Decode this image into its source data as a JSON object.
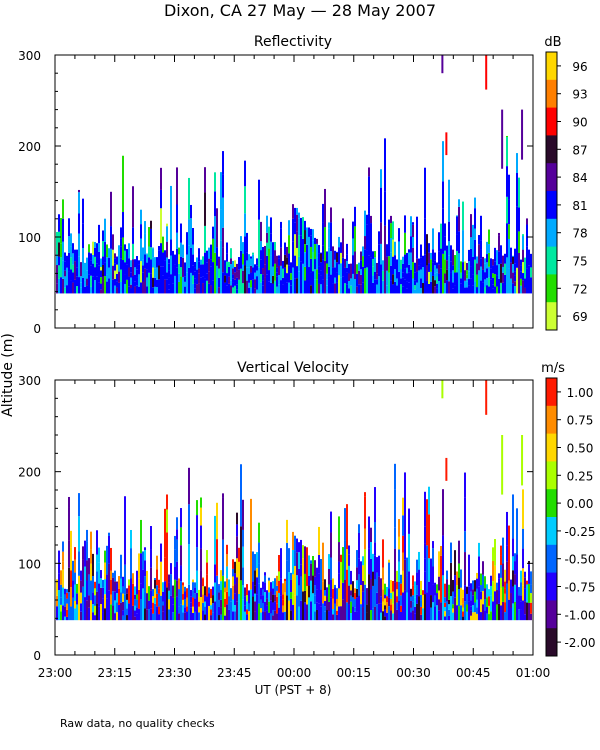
{
  "figure": {
    "title": "Dixon, CA 27 May — 28 May 2007",
    "ylabel": "Altitude (m)",
    "xlabel": "UT  (PST + 8)",
    "footnote": "Raw data, no quality checks"
  },
  "chart_data": [
    {
      "type": "heatmap",
      "title": "Reflectivity",
      "colorbar_unit": "dB",
      "colorbar_labels": [
        "96",
        "93",
        "90",
        "87",
        "84",
        "81",
        "78",
        "75",
        "72",
        "69"
      ],
      "colorbar_colors": [
        "#ffd700",
        "#ff7f00",
        "#ff0000",
        "#2a0a2a",
        "#55009a",
        "#0000ff",
        "#00aaff",
        "#00e8a0",
        "#22dd00",
        "#ccff33"
      ],
      "x_ticks": [
        "23:00",
        "23:15",
        "23:30",
        "23:45",
        "00:00",
        "00:15",
        "00:30",
        "00:45",
        "01:00"
      ],
      "y_ticks": [
        "0",
        "100",
        "200",
        "300"
      ],
      "ylim": [
        0,
        300
      ],
      "xlim_minutes": [
        0,
        120
      ],
      "data_bottom_m": 38,
      "notes": "Dense columnar echoes from ~40 m up to ~200 m; isolated returns near 240-300 m."
    },
    {
      "type": "heatmap",
      "title": "Vertical Velocity",
      "colorbar_unit": "m/s",
      "colorbar_labels": [
        "1.00",
        "0.75",
        "0.50",
        "0.25",
        "0.00",
        "-0.25",
        "-0.50",
        "-0.75",
        "-1.00",
        "-2.00"
      ],
      "colorbar_colors": [
        "#ff1a00",
        "#ff8c00",
        "#ffd700",
        "#aaff00",
        "#22dd00",
        "#00ccff",
        "#0066ff",
        "#2200ff",
        "#55009a",
        "#2a0a2a"
      ],
      "x_ticks": [
        "23:00",
        "23:15",
        "23:30",
        "23:45",
        "00:00",
        "00:15",
        "00:30",
        "00:45",
        "01:00"
      ],
      "y_ticks": [
        "0",
        "100",
        "200",
        "300"
      ],
      "ylim": [
        0,
        300
      ],
      "xlim_minutes": [
        0,
        120
      ],
      "data_bottom_m": 38,
      "notes": "Mostly downward (blue/purple) motion near 40-100 m with strong upward (red/yellow) columns up to ~220 m."
    }
  ]
}
